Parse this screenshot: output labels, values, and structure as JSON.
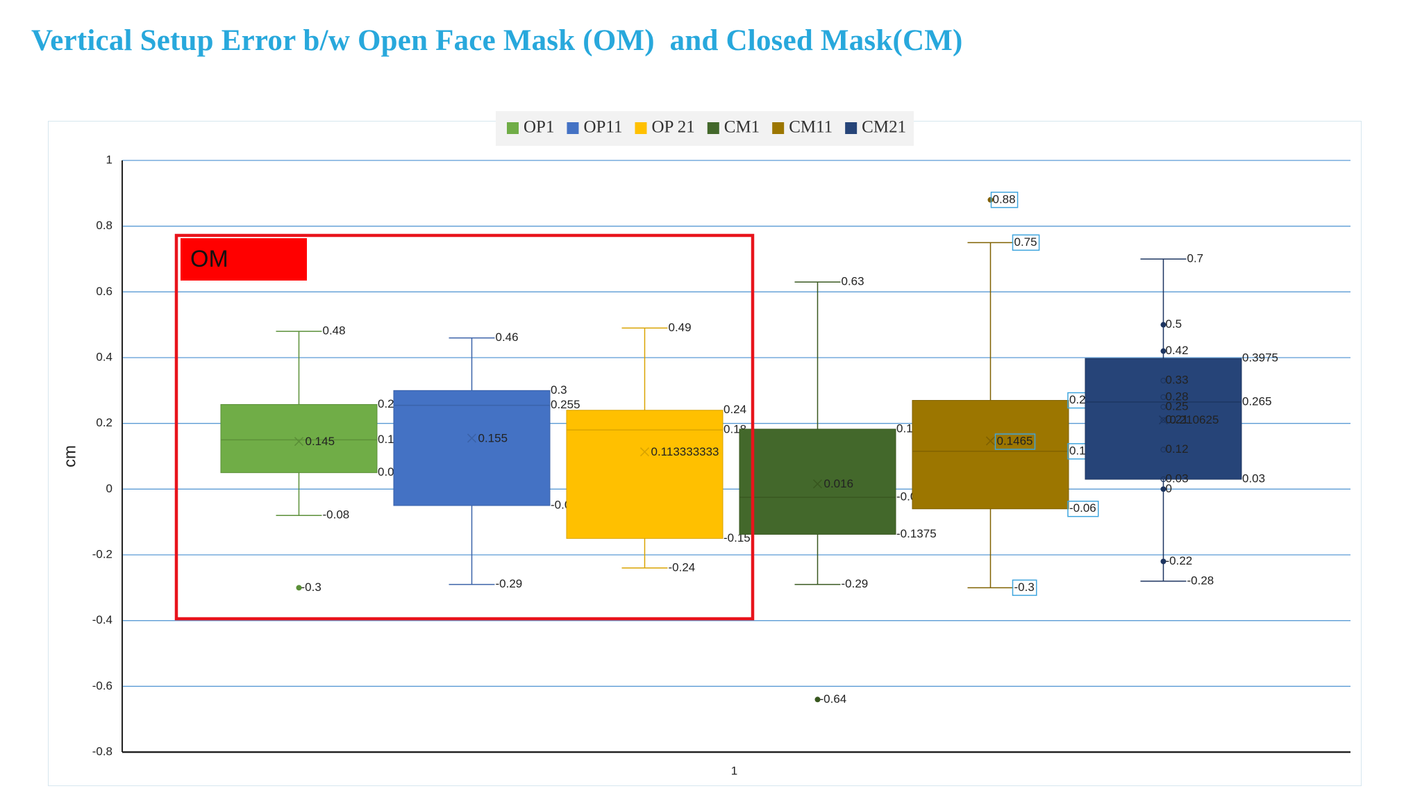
{
  "slide": {
    "title": "Vertical Setup Error b/w Open Face Mask (OM)  and Closed Mask(CM)"
  },
  "annotation": {
    "om_label": "OM",
    "box_color": "#e8141c",
    "label_bg": "#ff0000"
  },
  "chart_data": {
    "type": "box",
    "ylabel": "cm",
    "xlabel": "",
    "x_tick_label": "1",
    "ylim": [
      -0.8,
      1
    ],
    "y_ticks": [
      1,
      0.8,
      0.6,
      0.4,
      0.2,
      0,
      -0.2,
      -0.4,
      -0.6,
      -0.8
    ],
    "y_tick_labels": [
      "1",
      "0.8",
      "0.6",
      "0.4",
      "0.2",
      "0",
      "-0.2",
      "-0.4",
      "-0.6",
      "-0.8"
    ],
    "grid": true,
    "legend_position": "top-center",
    "series": [
      {
        "name": "OP1",
        "color": "#70ad47",
        "stroke": "#5a8f37",
        "max": 0.48,
        "q3": 0.2575,
        "median": 0.15,
        "mean": 0.145,
        "q1": 0.05,
        "min": -0.08,
        "outliers": [
          -0.3
        ],
        "inner_points": [],
        "labels": {
          "max": "0.48",
          "q3": "0.2575",
          "median": "0.15",
          "mean": "0.145",
          "q1": "0.05",
          "min": "-0.08"
        },
        "outlier_labels": [
          "-0.3"
        ],
        "inner_labels": []
      },
      {
        "name": "OP11",
        "color": "#4472c4",
        "stroke": "#3a62a8",
        "max": 0.46,
        "q3": 0.3,
        "median": 0.255,
        "mean": 0.155,
        "q1": -0.05,
        "min": -0.29,
        "outliers": [],
        "inner_points": [],
        "labels": {
          "max": "0.46",
          "q3": "0.3",
          "median": "0.255",
          "mean": "0.155",
          "q1": "-0.05",
          "min": "-0.29"
        },
        "outlier_labels": [],
        "inner_labels": []
      },
      {
        "name": "OP 21",
        "color": "#ffc000",
        "stroke": "#d9a300",
        "max": 0.49,
        "q3": 0.24,
        "median": 0.18,
        "mean": 0.113333333,
        "q1": -0.15,
        "min": -0.24,
        "outliers": [],
        "inner_points": [],
        "labels": {
          "max": "0.49",
          "q3": "0.24",
          "median": "0.18",
          "mean": "0.113333333",
          "q1": "-0.15",
          "min": "-0.24"
        },
        "outlier_labels": [],
        "inner_labels": []
      },
      {
        "name": "CM1",
        "color": "#43682b",
        "stroke": "#38571f",
        "max": 0.63,
        "q3": 0.1825,
        "median": -0.025,
        "mean": 0.016,
        "q1": -0.1375,
        "min": -0.29,
        "outliers": [
          -0.64
        ],
        "inner_points": [],
        "labels": {
          "max": "0.63",
          "q3": "0.1825",
          "median": "-0.025",
          "mean": "0.016",
          "q1": "-0.1375",
          "min": "-0.29"
        },
        "outlier_labels": [
          "-0.64"
        ],
        "inner_labels": []
      },
      {
        "name": "CM11",
        "color": "#9c7600",
        "stroke": "#7f6000",
        "max": 0.75,
        "q3": 0.27,
        "median": 0.115,
        "mean": 0.1465,
        "q1": -0.06,
        "min": -0.3,
        "outliers": [
          0.88
        ],
        "inner_points": [],
        "labels": {
          "max": "0.75",
          "q3": "0.27",
          "median": "0.115",
          "mean": "0.1465",
          "q1": "-0.06",
          "min": "-0.3"
        },
        "outlier_labels": [
          "0.88"
        ],
        "inner_labels": []
      },
      {
        "name": "CM21",
        "color": "#264478",
        "stroke": "#1d3560",
        "max": 0.7,
        "q3": 0.3975,
        "median": 0.265,
        "mean": 0.210625,
        "q1": 0.03,
        "min": -0.28,
        "outliers": [
          0.5,
          0.42,
          0,
          -0.22
        ],
        "inner_points": [
          0.33,
          0.28,
          0.25,
          0.21,
          0.12,
          0.03
        ],
        "labels": {
          "max": "0.7",
          "q3": "0.3975",
          "median": "0.265",
          "mean": "0.210625",
          "q1": "0.03",
          "min": "-0.28"
        },
        "outlier_labels": [
          "0.5",
          "0.42",
          "0",
          "-0.22"
        ],
        "inner_labels": [
          "0.33",
          "0.28",
          "0.25",
          "0.21",
          "0.12",
          "0.03"
        ]
      }
    ]
  }
}
